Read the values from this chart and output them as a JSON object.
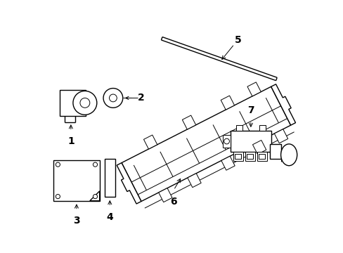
{
  "background_color": "#ffffff",
  "line_color": "#000000",
  "lw": 1.0,
  "tlw": 0.7,
  "figsize": [
    4.89,
    3.6
  ],
  "dpi": 100,
  "label_fontsize": 10
}
